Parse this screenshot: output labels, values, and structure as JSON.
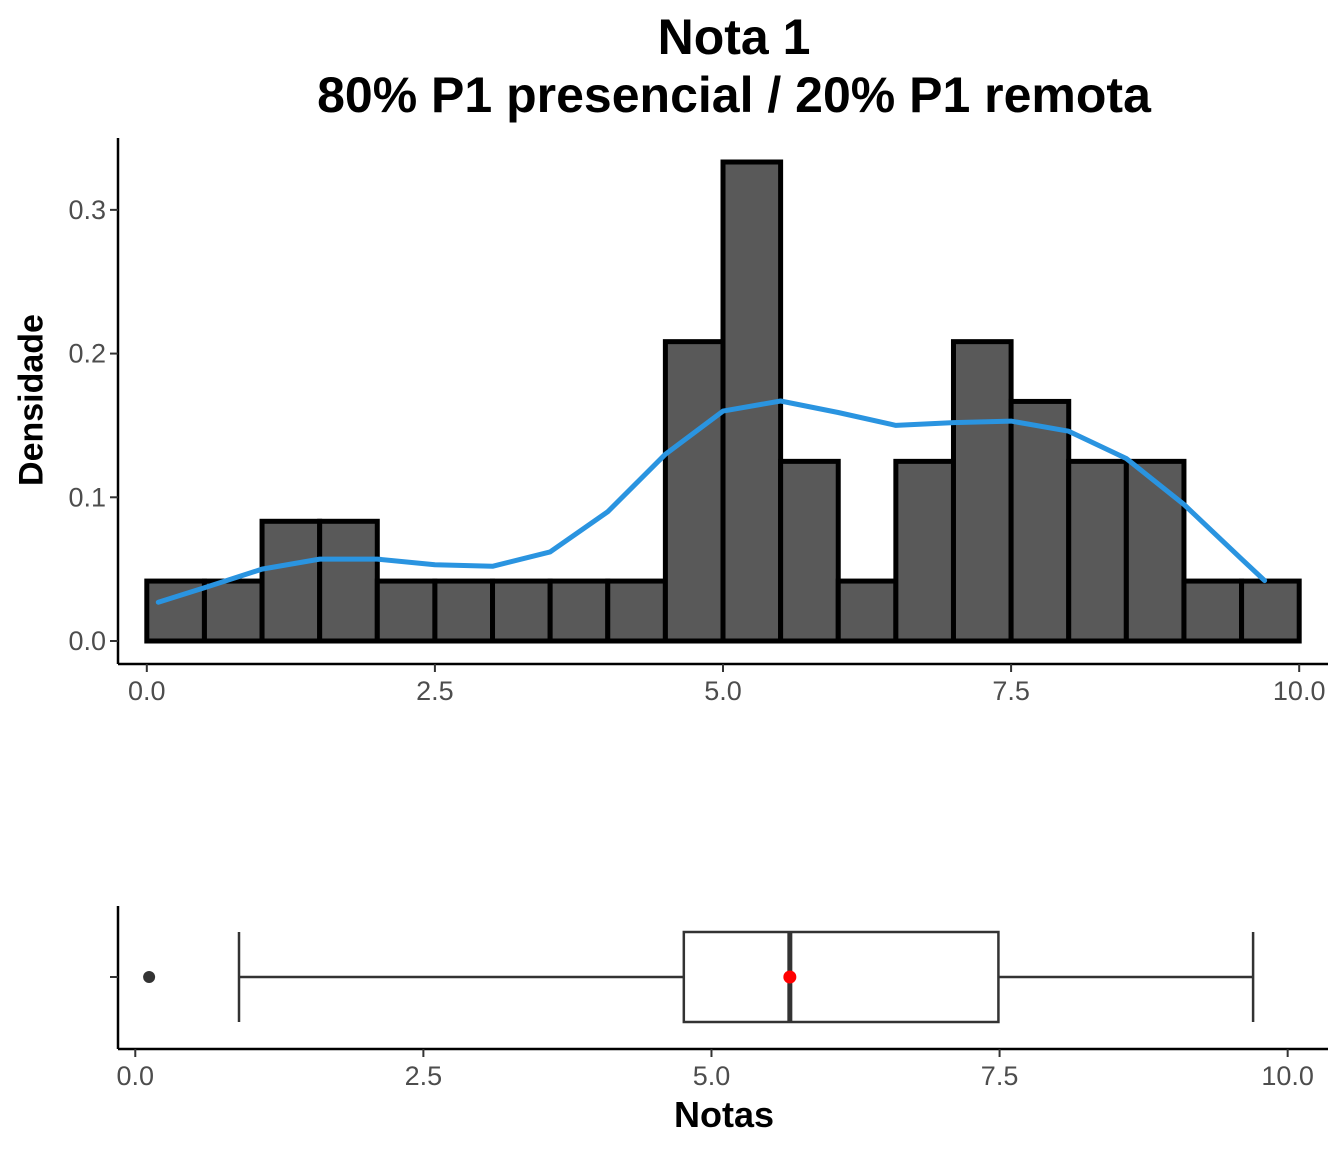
{
  "title_line1": "Nota 1",
  "title_line2": "80% P1 presencial / 20% P1 remota",
  "ylabel": "Densidade",
  "xlabel": "Notas",
  "colors": {
    "bar_fill": "#595959",
    "bar_stroke": "#000000",
    "density_line": "#2A94E0",
    "box_stroke": "#333333",
    "mean_point": "#FF0000",
    "outlier": "#333333"
  },
  "chart_data": [
    {
      "type": "histogram",
      "bin_width": 0.5,
      "bins_start": [
        0.0,
        0.5,
        1.0,
        1.5,
        2.0,
        2.5,
        3.0,
        3.5,
        4.0,
        4.5,
        5.0,
        5.5,
        6.0,
        6.5,
        7.0,
        7.5,
        8.0,
        8.5,
        9.0,
        9.5
      ],
      "values": [
        0.0417,
        0.0417,
        0.0833,
        0.0833,
        0.0417,
        0.0417,
        0.0417,
        0.0417,
        0.0417,
        0.2083,
        0.3333,
        0.125,
        0.0417,
        0.125,
        0.2083,
        0.1667,
        0.125,
        0.125,
        0.0417,
        0.0417
      ],
      "density_curve": {
        "x": [
          0.1,
          0.5,
          1.0,
          1.5,
          2.0,
          2.5,
          3.0,
          3.5,
          4.0,
          4.5,
          5.0,
          5.5,
          6.0,
          6.5,
          7.0,
          7.5,
          8.0,
          8.5,
          9.0,
          9.5,
          9.7
        ],
        "y": [
          0.027,
          0.037,
          0.05,
          0.057,
          0.057,
          0.053,
          0.052,
          0.062,
          0.09,
          0.13,
          0.16,
          0.167,
          0.159,
          0.15,
          0.152,
          0.153,
          0.146,
          0.127,
          0.095,
          0.057,
          0.042
        ]
      },
      "xlim": [
        -0.25,
        10.25
      ],
      "ylim": [
        -0.016,
        0.35
      ],
      "x_ticks": [
        "0.0",
        "2.5",
        "5.0",
        "7.5",
        "10.0"
      ],
      "y_ticks": [
        "0.0",
        "0.1",
        "0.2",
        "0.3"
      ],
      "grid": false
    },
    {
      "type": "boxplot",
      "whisker_low": 0.9,
      "q1": 4.76,
      "median": 5.68,
      "mean": 5.68,
      "q3": 7.49,
      "whisker_high": 9.7,
      "outliers": [
        0.12
      ],
      "xlim": [
        -0.15,
        10.35
      ],
      "x_ticks": [
        "0.0",
        "2.5",
        "5.0",
        "7.5",
        "10.0"
      ],
      "grid": false
    }
  ]
}
